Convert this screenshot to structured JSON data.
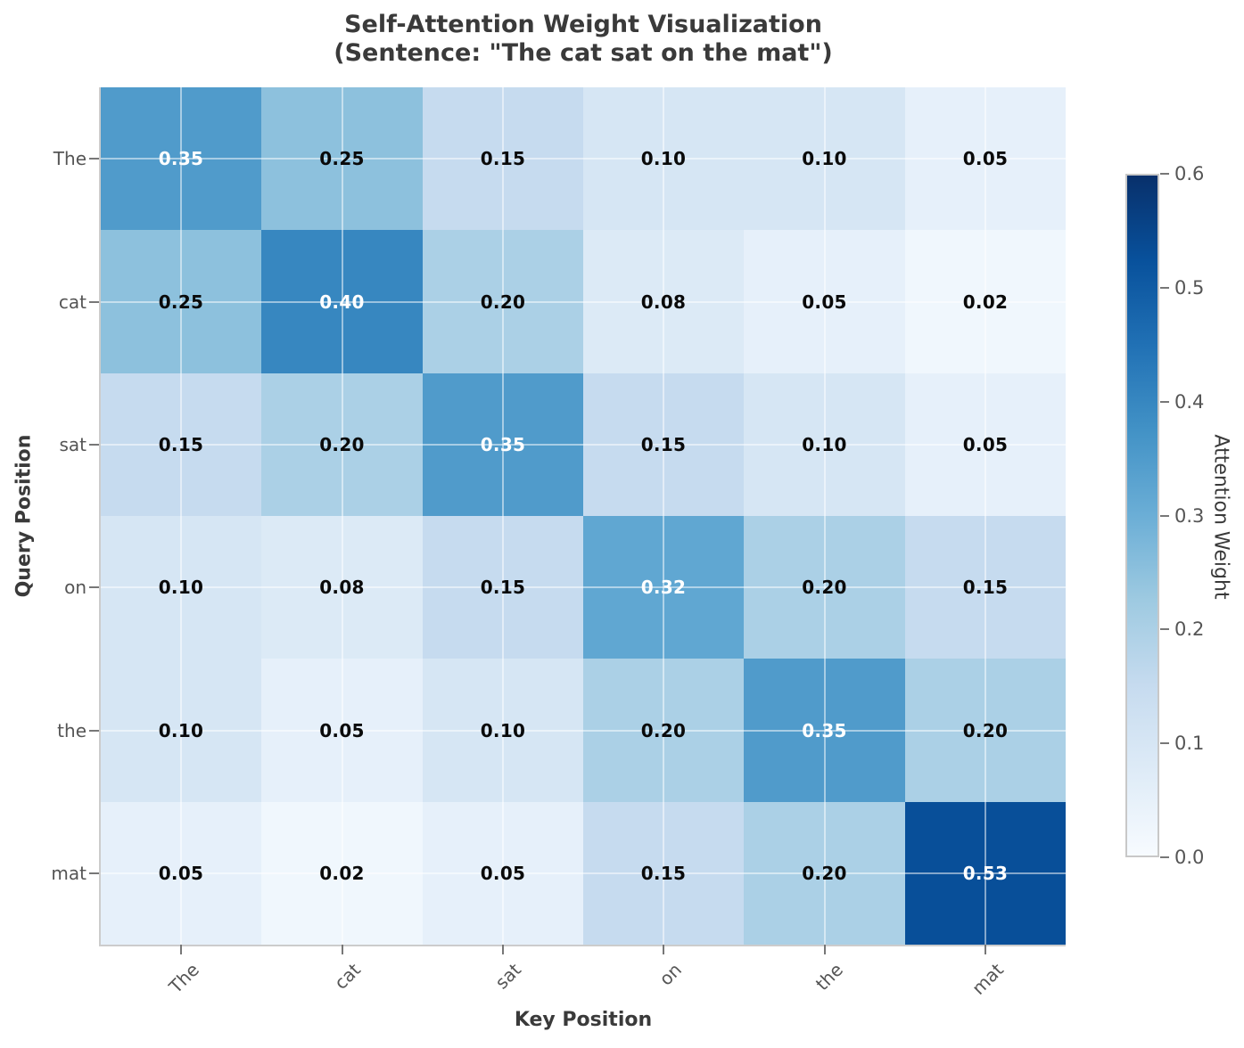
{
  "chart_data": {
    "type": "heatmap",
    "title": "Self-Attention Weight Visualization",
    "subtitle": "(Sentence: \"The cat sat on the mat\")",
    "xlabel": "Key Position",
    "ylabel": "Query Position",
    "x_categories": [
      "The",
      "cat",
      "sat",
      "on",
      "the",
      "mat"
    ],
    "y_categories": [
      "The",
      "cat",
      "sat",
      "on",
      "the",
      "mat"
    ],
    "values": [
      [
        0.35,
        0.25,
        0.15,
        0.1,
        0.1,
        0.05
      ],
      [
        0.25,
        0.4,
        0.2,
        0.08,
        0.05,
        0.02
      ],
      [
        0.15,
        0.2,
        0.35,
        0.15,
        0.1,
        0.05
      ],
      [
        0.1,
        0.08,
        0.15,
        0.32,
        0.2,
        0.15
      ],
      [
        0.1,
        0.05,
        0.1,
        0.2,
        0.35,
        0.2
      ],
      [
        0.05,
        0.02,
        0.05,
        0.15,
        0.2,
        0.53
      ]
    ],
    "value_decimals": 2,
    "vmin": 0.0,
    "vmax": 0.6,
    "grid": true,
    "colorbar": {
      "label": "Attention Weight",
      "ticks": [
        0.0,
        0.1,
        0.2,
        0.3,
        0.4,
        0.5,
        0.6
      ],
      "tick_decimals": 1
    },
    "colormap": {
      "name": "Blues",
      "stops": [
        "#f7fbff",
        "#deebf7",
        "#c6dbef",
        "#9ecae1",
        "#6baed6",
        "#4292c6",
        "#2171b5",
        "#08519c",
        "#08306b"
      ]
    }
  }
}
